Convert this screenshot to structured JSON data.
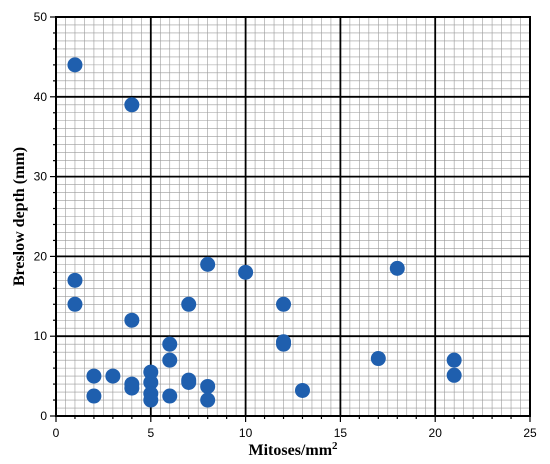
{
  "chart_data": {
    "type": "scatter",
    "xlabel": "Mitoses/mm",
    "xlabel_superscript": "2",
    "ylabel": "Breslow depth (mm)",
    "xlim": [
      0,
      25
    ],
    "ylim": [
      0,
      50
    ],
    "x_ticks": [
      "0",
      "5",
      "10",
      "15",
      "20",
      "25"
    ],
    "y_ticks": [
      "0",
      "10",
      "20",
      "30",
      "40",
      "50"
    ],
    "grid": "major and minor",
    "marker_color": "#1f5fae",
    "series": [
      {
        "points": [
          {
            "x": 1,
            "y": 44
          },
          {
            "x": 4,
            "y": 39
          },
          {
            "x": 1,
            "y": 17
          },
          {
            "x": 1,
            "y": 14
          },
          {
            "x": 4,
            "y": 12
          },
          {
            "x": 2,
            "y": 5
          },
          {
            "x": 2,
            "y": 2.5
          },
          {
            "x": 3,
            "y": 5
          },
          {
            "x": 4,
            "y": 4
          },
          {
            "x": 4,
            "y": 3.5
          },
          {
            "x": 5,
            "y": 5.5
          },
          {
            "x": 5,
            "y": 4.2
          },
          {
            "x": 5,
            "y": 2.8
          },
          {
            "x": 5,
            "y": 2
          },
          {
            "x": 6,
            "y": 9
          },
          {
            "x": 6,
            "y": 7
          },
          {
            "x": 6,
            "y": 2.5
          },
          {
            "x": 7,
            "y": 14
          },
          {
            "x": 7,
            "y": 4.5
          },
          {
            "x": 7,
            "y": 4.2
          },
          {
            "x": 8,
            "y": 19
          },
          {
            "x": 8,
            "y": 3.7
          },
          {
            "x": 8,
            "y": 2
          },
          {
            "x": 10,
            "y": 18
          },
          {
            "x": 12,
            "y": 14
          },
          {
            "x": 12,
            "y": 9.3
          },
          {
            "x": 12,
            "y": 9
          },
          {
            "x": 13,
            "y": 3.2
          },
          {
            "x": 17,
            "y": 7.2
          },
          {
            "x": 18,
            "y": 18.5
          },
          {
            "x": 21,
            "y": 7
          },
          {
            "x": 21,
            "y": 5.1
          }
        ]
      }
    ]
  }
}
